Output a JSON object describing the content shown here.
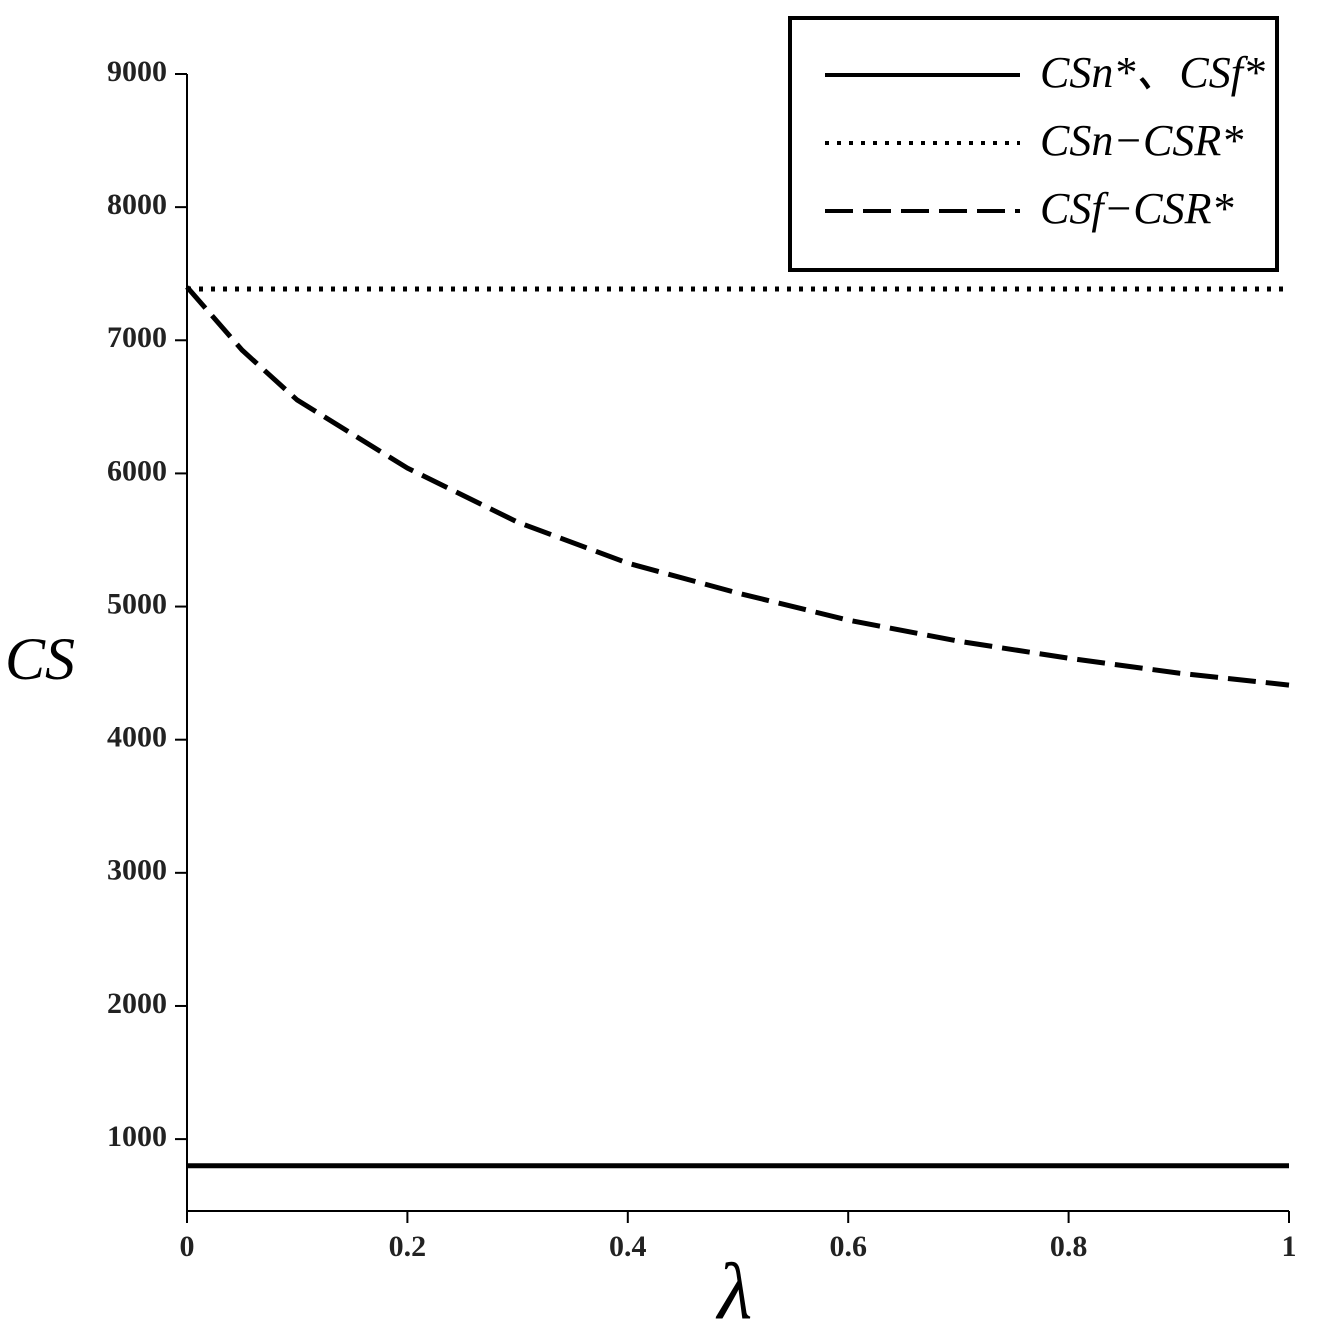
{
  "chart_data": {
    "type": "line",
    "x_label": "λ",
    "y_label": "CS",
    "x": [
      0,
      0.05,
      0.1,
      0.2,
      0.3,
      0.4,
      0.5,
      0.6,
      0.7,
      0.8,
      0.9,
      1
    ],
    "series": [
      {
        "name": "CSn*、CSf*",
        "color": "#000000",
        "style": "solid",
        "values": [
          800,
          800,
          800,
          800,
          800,
          800,
          800,
          800,
          800,
          800,
          800,
          800
        ]
      },
      {
        "name": "CSn−CSR*",
        "color": "#000000",
        "style": "dotted",
        "values": [
          7385,
          7385,
          7385,
          7385,
          7385,
          7385,
          7385,
          7385,
          7385,
          7385,
          7385,
          7385
        ]
      },
      {
        "name": "CSf−CSR*",
        "color": "#000000",
        "style": "dashed",
        "values": [
          7400,
          6926,
          6551,
          6040,
          5634,
          5326,
          5101,
          4898,
          4740,
          4612,
          4500,
          4410
        ]
      }
    ],
    "xlim": [
      0,
      1
    ],
    "xticks": [
      0,
      0.2,
      0.4,
      0.6,
      0.8,
      1
    ],
    "ylim": [
      460,
      9000
    ],
    "yticks": [
      1000,
      2000,
      3000,
      4000,
      5000,
      6000,
      7000,
      8000,
      9000
    ],
    "legend": "top-right"
  }
}
